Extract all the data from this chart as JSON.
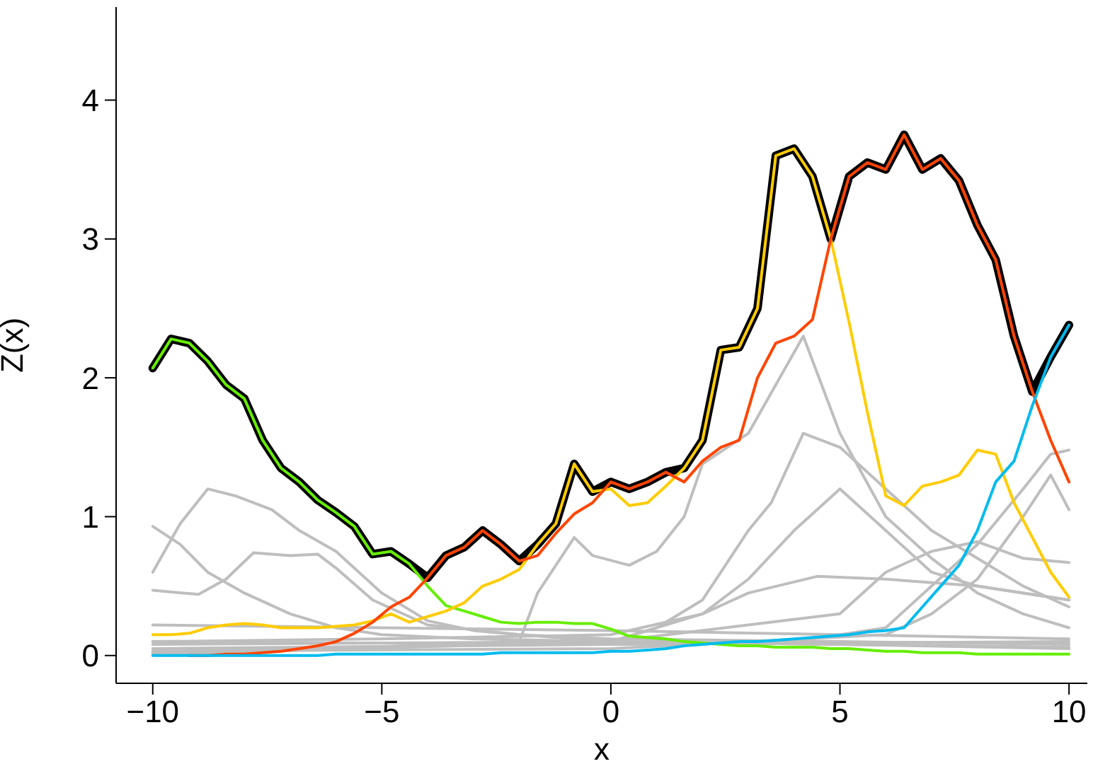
{
  "chart_data": {
    "type": "line",
    "xlabel": "x",
    "ylabel": "Z(x)",
    "xlim": [
      -10.8,
      10.4
    ],
    "ylim": [
      -0.2,
      4.67
    ],
    "xticks": [
      {
        "value": -10,
        "label": "−10"
      },
      {
        "value": -5,
        "label": "−5"
      },
      0,
      5,
      10
    ],
    "yticks": [
      0,
      1,
      2,
      3,
      4
    ],
    "grid": false,
    "marker": "none",
    "line_style": "solid",
    "x": [
      -10,
      -9.6,
      -9.2,
      -8.8,
      -8.4,
      -8.0,
      -7.6,
      -7.2,
      -6.8,
      -6.4,
      -6.0,
      -5.6,
      -5.2,
      -4.8,
      -4.4,
      -4.0,
      -3.6,
      -3.2,
      -2.8,
      -2.4,
      -2.0,
      -1.6,
      -1.2,
      -0.8,
      -0.4,
      0,
      0.4,
      0.8,
      1.2,
      1.6,
      2.0,
      2.4,
      2.8,
      3.2,
      3.6,
      4.0,
      4.4,
      4.8,
      5.2,
      5.6,
      6.0,
      6.4,
      6.8,
      7.2,
      7.6,
      8.0,
      8.4,
      8.8,
      9.2,
      9.6,
      10
    ],
    "series": [
      {
        "color": "#bebebe",
        "x": [
          -10,
          -6,
          -2,
          -1.6,
          -0.8,
          -0.4,
          0.4,
          1,
          1.6,
          2,
          3,
          4.2,
          5,
          6,
          7,
          8,
          9,
          10
        ],
        "values": [
          0.02,
          0.05,
          0.1,
          0.45,
          0.85,
          0.72,
          0.65,
          0.75,
          1.0,
          1.38,
          1.6,
          2.3,
          1.6,
          1.0,
          0.7,
          0.45,
          0.3,
          0.2
        ]
      },
      {
        "color": "#bebebe",
        "x": [
          -10,
          0,
          1,
          2,
          3,
          3.5,
          4.2,
          5,
          6,
          7,
          8,
          9,
          10
        ],
        "values": [
          0.01,
          0.1,
          0.2,
          0.4,
          0.9,
          1.1,
          1.6,
          1.5,
          1.2,
          0.9,
          0.7,
          0.5,
          0.35
        ]
      },
      {
        "color": "#bebebe",
        "x": [
          -10,
          -9.4,
          -8.8,
          -8.2,
          -7.4,
          -6.8,
          -6,
          -5,
          -4,
          -3,
          -2,
          0,
          5,
          10
        ],
        "values": [
          0.6,
          0.95,
          1.2,
          1.15,
          1.05,
          0.9,
          0.75,
          0.45,
          0.25,
          0.18,
          0.15,
          0.1,
          0.08,
          0.05
        ]
      },
      {
        "color": "#bebebe",
        "x": [
          -10,
          -9.4,
          -8.8,
          -8,
          -7,
          -6,
          -5,
          -3,
          0,
          5,
          10
        ],
        "values": [
          0.93,
          0.8,
          0.6,
          0.45,
          0.3,
          0.2,
          0.15,
          0.12,
          0.1,
          0.08,
          0.06
        ]
      },
      {
        "color": "#bebebe",
        "x": [
          -10,
          -9,
          -8.4,
          -7.8,
          -7,
          -6.4,
          -6,
          -5.2,
          -4,
          -2,
          0,
          5,
          10
        ],
        "values": [
          0.47,
          0.44,
          0.55,
          0.74,
          0.72,
          0.73,
          0.63,
          0.4,
          0.22,
          0.15,
          0.12,
          0.1,
          0.08
        ]
      },
      {
        "color": "#bebebe",
        "x": [
          -10,
          0,
          4,
          6,
          7,
          8,
          9,
          9.6,
          10
        ],
        "values": [
          0.05,
          0.08,
          0.1,
          0.2,
          0.5,
          0.8,
          1.2,
          1.45,
          1.48
        ]
      },
      {
        "color": "#bebebe",
        "x": [
          -10,
          0,
          6,
          7,
          8,
          9,
          9.6,
          10
        ],
        "values": [
          0.03,
          0.05,
          0.15,
          0.3,
          0.55,
          1.0,
          1.3,
          1.05
        ]
      },
      {
        "color": "#bebebe",
        "x": [
          -10,
          0,
          2,
          3,
          4,
          5,
          6,
          7,
          8,
          9,
          10
        ],
        "values": [
          0.03,
          0.1,
          0.3,
          0.55,
          0.9,
          1.2,
          0.9,
          0.6,
          0.5,
          0.45,
          0.4
        ]
      },
      {
        "color": "#bebebe",
        "x": [
          -10,
          -5,
          0,
          2,
          3,
          4.5,
          6,
          8,
          10
        ],
        "values": [
          0.1,
          0.12,
          0.15,
          0.3,
          0.45,
          0.57,
          0.55,
          0.5,
          0.4
        ]
      },
      {
        "color": "#bebebe",
        "x": [
          -10,
          0,
          5,
          6,
          7,
          8,
          9,
          10
        ],
        "values": [
          0.08,
          0.1,
          0.3,
          0.6,
          0.75,
          0.82,
          0.7,
          0.67
        ]
      },
      {
        "color": "#bebebe",
        "x": [
          -10,
          -5,
          0,
          5,
          10
        ],
        "values": [
          0.22,
          0.2,
          0.18,
          0.15,
          0.12
        ]
      },
      {
        "color": "#bebebe",
        "x": [
          -10,
          0,
          10
        ],
        "values": [
          0.1,
          0.08,
          0.1
        ]
      },
      {
        "color": "#000000",
        "values": [
          2.07,
          2.28,
          2.25,
          2.12,
          1.95,
          1.85,
          1.55,
          1.35,
          1.25,
          1.12,
          1.03,
          0.93,
          0.73,
          0.75,
          0.66,
          0.56,
          0.72,
          0.78,
          0.9,
          0.8,
          0.68,
          0.8,
          0.95,
          1.38,
          1.18,
          1.25,
          1.2,
          1.25,
          1.32,
          1.35,
          1.55,
          2.2,
          2.22,
          2.5,
          3.6,
          3.65,
          3.45,
          3.0,
          3.45,
          3.55,
          3.5,
          3.75,
          3.5,
          3.58,
          3.42,
          3.1,
          2.85,
          2.3,
          1.9,
          2.15,
          2.38
        ]
      },
      {
        "color": "#66ee00",
        "values": [
          2.07,
          2.28,
          2.25,
          2.12,
          1.95,
          1.85,
          1.55,
          1.35,
          1.25,
          1.12,
          1.03,
          0.93,
          0.73,
          0.75,
          0.66,
          0.5,
          0.36,
          0.32,
          0.28,
          0.24,
          0.23,
          0.24,
          0.24,
          0.23,
          0.23,
          0.19,
          0.14,
          0.13,
          0.12,
          0.1,
          0.09,
          0.08,
          0.07,
          0.07,
          0.06,
          0.06,
          0.06,
          0.05,
          0.05,
          0.04,
          0.03,
          0.03,
          0.02,
          0.02,
          0.02,
          0.01,
          0.01,
          0.01,
          0.01,
          0.01,
          0.01
        ]
      },
      {
        "color": "#ffcc00",
        "values": [
          0.15,
          0.15,
          0.16,
          0.2,
          0.22,
          0.23,
          0.22,
          0.2,
          0.2,
          0.2,
          0.21,
          0.22,
          0.25,
          0.3,
          0.24,
          0.28,
          0.32,
          0.38,
          0.5,
          0.55,
          0.62,
          0.8,
          0.95,
          1.38,
          1.18,
          1.2,
          1.08,
          1.1,
          1.22,
          1.35,
          1.55,
          2.2,
          2.22,
          2.5,
          3.6,
          3.65,
          3.45,
          3.0,
          2.4,
          1.75,
          1.15,
          1.08,
          1.22,
          1.25,
          1.3,
          1.48,
          1.45,
          1.1,
          0.85,
          0.6,
          0.42
        ]
      },
      {
        "color": "#ff4400",
        "values": [
          null,
          null,
          0,
          0,
          0.01,
          0.01,
          0.02,
          0.03,
          0.05,
          0.07,
          0.1,
          0.16,
          0.24,
          0.35,
          0.42,
          0.56,
          0.72,
          0.78,
          0.9,
          0.8,
          0.68,
          0.72,
          0.88,
          1.02,
          1.1,
          1.25,
          1.2,
          1.25,
          1.32,
          1.25,
          1.4,
          1.5,
          1.55,
          2.0,
          2.25,
          2.3,
          2.42,
          3.0,
          3.45,
          3.55,
          3.5,
          3.75,
          3.5,
          3.58,
          3.42,
          3.1,
          2.85,
          2.3,
          1.9,
          1.55,
          1.25
        ]
      },
      {
        "color": "#00bbee",
        "values": [
          0,
          0,
          0,
          0,
          0,
          0,
          0,
          0,
          0,
          0,
          0.01,
          0.01,
          0.01,
          0.01,
          0.01,
          0.01,
          0.01,
          0.01,
          0.01,
          0.02,
          0.02,
          0.02,
          0.02,
          0.02,
          0.02,
          0.03,
          0.03,
          0.04,
          0.05,
          0.07,
          0.08,
          0.09,
          0.1,
          0.1,
          0.11,
          0.12,
          0.13,
          0.14,
          0.15,
          0.17,
          0.18,
          0.2,
          0.35,
          0.5,
          0.65,
          0.9,
          1.25,
          1.4,
          1.8,
          2.15,
          2.38
        ]
      }
    ]
  }
}
